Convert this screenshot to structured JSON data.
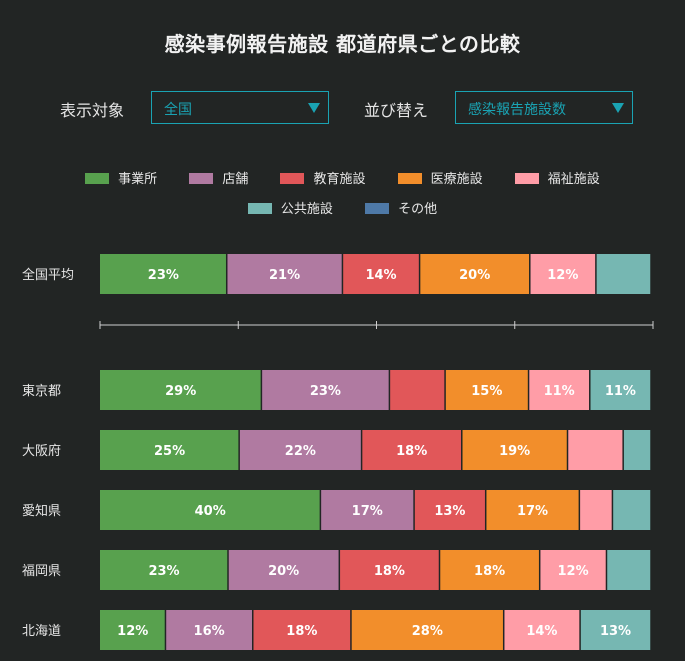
{
  "title": "感染事例報告施設 都道府県ごとの比較",
  "controls": {
    "target_label": "表示対象",
    "target_value": "全国",
    "sort_label": "並び替え",
    "sort_value": "感染報告施設数"
  },
  "colors": {
    "事業所": "#58a14e",
    "店舗": "#b07aa1",
    "教育施設": "#e15759",
    "医療施設": "#f28e2b",
    "福祉施設": "#ff9da7",
    "公共施設": "#76b7b2",
    "その他": "#4e79a7"
  },
  "chart_data": {
    "type": "bar",
    "orientation": "horizontal",
    "stacked": true,
    "normalized": true,
    "title": "感染事例報告施設 都道府県ごとの比較",
    "xlabel": "",
    "ylabel": "",
    "categories": [
      "全国平均",
      "東京都",
      "大阪府",
      "愛知県",
      "福岡県",
      "北海道"
    ],
    "series": [
      {
        "name": "事業所",
        "values": [
          23,
          29,
          25,
          40,
          23,
          12
        ]
      },
      {
        "name": "店舗",
        "values": [
          21,
          23,
          22,
          17,
          20,
          16
        ]
      },
      {
        "name": "教育施設",
        "values": [
          14,
          10,
          18,
          13,
          18,
          18
        ]
      },
      {
        "name": "医療施設",
        "values": [
          20,
          15,
          19,
          17,
          18,
          28
        ]
      },
      {
        "name": "福祉施設",
        "values": [
          12,
          11,
          10,
          6,
          12,
          14
        ]
      },
      {
        "name": "公共施設",
        "values": [
          10,
          11,
          5,
          7,
          8,
          13
        ]
      },
      {
        "name": "その他",
        "values": [
          0,
          0,
          0,
          0,
          0,
          0
        ]
      }
    ],
    "data_labels": [
      [
        "23%",
        "21%",
        "14%",
        "20%",
        "12%",
        "",
        ""
      ],
      [
        "29%",
        "23%",
        "",
        "15%",
        "11%",
        "11%",
        ""
      ],
      [
        "25%",
        "22%",
        "18%",
        "19%",
        "",
        "",
        ""
      ],
      [
        "40%",
        "17%",
        "13%",
        "17%",
        "",
        "",
        ""
      ],
      [
        "23%",
        "20%",
        "18%",
        "18%",
        "12%",
        "",
        ""
      ],
      [
        "12%",
        "16%",
        "18%",
        "28%",
        "14%",
        "13%",
        ""
      ]
    ],
    "xlim": [
      0,
      100
    ],
    "legend_position": "top"
  }
}
